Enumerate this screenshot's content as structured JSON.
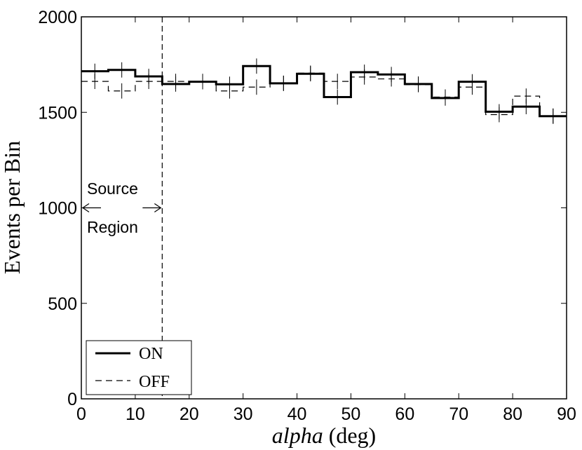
{
  "chart_data": {
    "type": "line",
    "xlabel_italic": "alpha",
    "xlabel_unit": " (deg)",
    "ylabel": "Events per Bin",
    "xlim": [
      0,
      90
    ],
    "ylim": [
      0,
      2000
    ],
    "x_ticks": [
      0,
      10,
      20,
      30,
      40,
      50,
      60,
      70,
      80,
      90
    ],
    "y_ticks": [
      0,
      500,
      1000,
      1500,
      2000
    ],
    "bin_edges": [
      0,
      5,
      10,
      15,
      20,
      25,
      30,
      35,
      40,
      45,
      50,
      55,
      60,
      65,
      70,
      75,
      80,
      85,
      90
    ],
    "series": [
      {
        "name": "ON",
        "style": "solid",
        "color": "#000000",
        "values": [
          1715,
          1722,
          1688,
          1648,
          1660,
          1647,
          1742,
          1652,
          1702,
          1580,
          1710,
          1698,
          1648,
          1575,
          1660,
          1503,
          1530,
          1480
        ],
        "errors": [
          40,
          40,
          40,
          40,
          40,
          40,
          40,
          40,
          40,
          40,
          40,
          40,
          40,
          40,
          40,
          40,
          40,
          40
        ]
      },
      {
        "name": "OFF",
        "style": "dashed",
        "color": "#000000",
        "values": [
          1662,
          1612,
          1662,
          1662,
          1662,
          1612,
          1632,
          1652,
          1705,
          1662,
          1685,
          1675,
          1645,
          1580,
          1632,
          1488,
          1585,
          1480
        ],
        "errors": [
          40,
          40,
          40,
          40,
          40,
          40,
          40,
          40,
          40,
          40,
          40,
          40,
          40,
          40,
          40,
          40,
          40,
          40
        ]
      }
    ],
    "annotations": {
      "source_line_x": 15,
      "source_label_1": "Source",
      "source_label_2": "Region",
      "arrow_y": 1000
    },
    "legend": {
      "position": "bottom-left",
      "entries": [
        "ON",
        "OFF"
      ]
    },
    "grid": false
  }
}
